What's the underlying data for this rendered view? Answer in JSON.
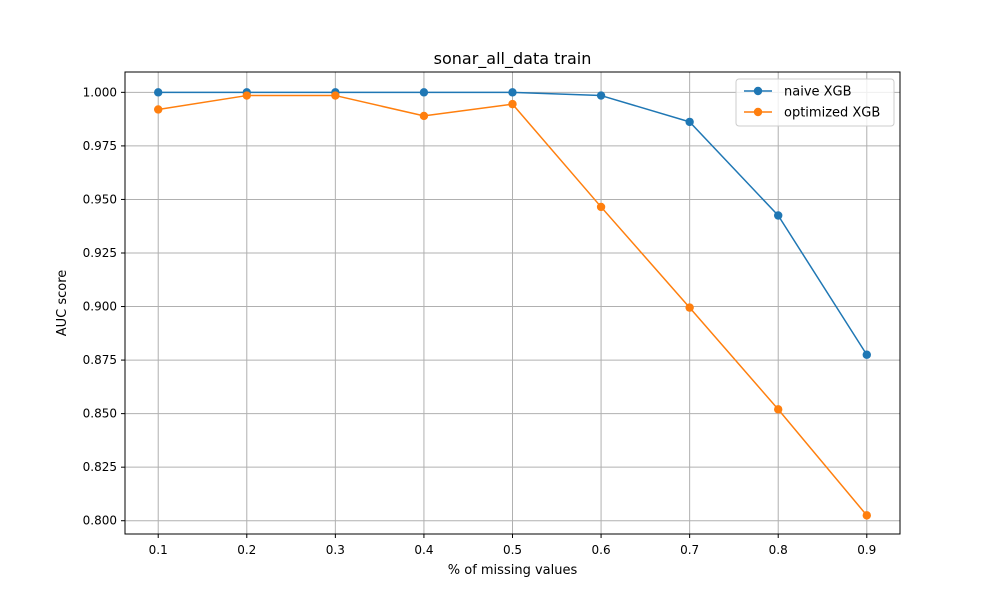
{
  "chart_data": {
    "type": "line",
    "title": "sonar_all_data train",
    "xlabel": "% of missing values",
    "ylabel": "AUC score",
    "x": [
      0.1,
      0.2,
      0.3,
      0.4,
      0.5,
      0.6,
      0.7,
      0.8,
      0.9
    ],
    "x_tick_labels": [
      "0.1",
      "0.2",
      "0.3",
      "0.4",
      "0.5",
      "0.6",
      "0.7",
      "0.8",
      "0.9"
    ],
    "y_ticks": [
      0.8,
      0.825,
      0.85,
      0.875,
      0.9,
      0.925,
      0.95,
      0.975,
      1.0
    ],
    "y_tick_labels": [
      "0.800",
      "0.825",
      "0.850",
      "0.875",
      "0.900",
      "0.925",
      "0.950",
      "0.975",
      "1.000"
    ],
    "xlim": [
      0.0625,
      0.9375
    ],
    "ylim": [
      0.7938,
      1.0095
    ],
    "grid": true,
    "legend_position": "top-right",
    "series": [
      {
        "name": "naive XGB",
        "color": "#1f77b4",
        "values": [
          1.0,
          1.0,
          1.0,
          1.0,
          1.0,
          0.9985,
          0.9862,
          0.9425,
          0.8775
        ]
      },
      {
        "name": "optimized XGB",
        "color": "#ff7f0e",
        "values": [
          0.992,
          0.9985,
          0.9985,
          0.989,
          0.9945,
          0.9465,
          0.8995,
          0.852,
          0.8025
        ]
      }
    ]
  }
}
